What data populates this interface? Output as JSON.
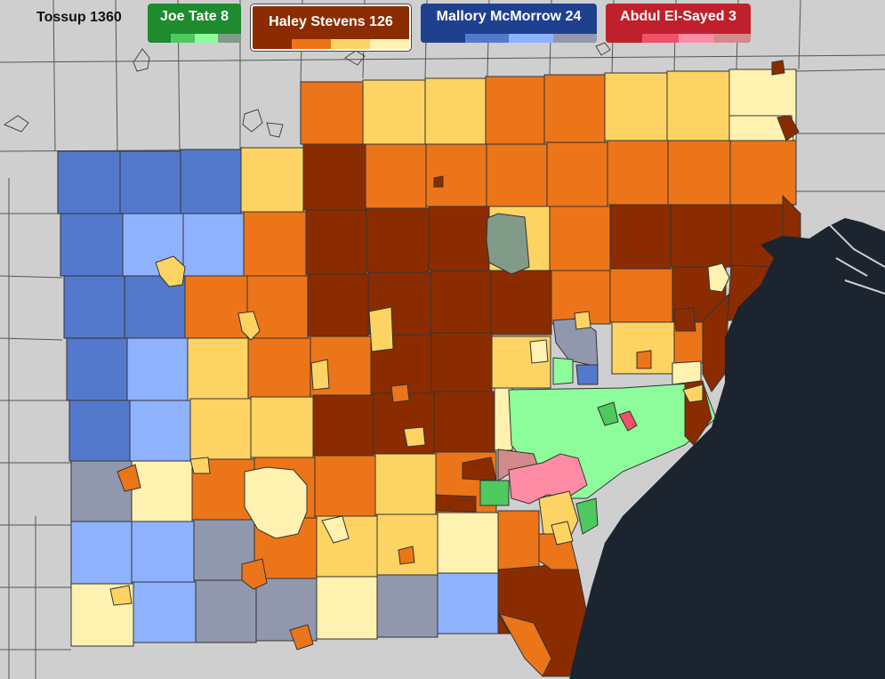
{
  "legend": {
    "tossup": "Tossup 1360",
    "candidates": [
      {
        "key": "tate",
        "label": "Joe Tate 8",
        "shades": [
          "#1e8b2f",
          "#4ec95e",
          "#8dfc9a",
          "#829a88"
        ]
      },
      {
        "key": "stevens",
        "label": "Haley Stevens 126",
        "shades": [
          "#8b2c00",
          "#ec7519",
          "#fdd463",
          "#fff2b0"
        ]
      },
      {
        "key": "mcm",
        "label": "Mallory McMorrow 24",
        "shades": [
          "#1f3f8f",
          "#5479cc",
          "#8fb2ff",
          "#9198ae"
        ]
      },
      {
        "key": "abdul",
        "label": "Abdul El-Sayed 3",
        "shades": [
          "#c0202c",
          "#f0506a",
          "#ff8ca4",
          "#d38a8a"
        ]
      }
    ]
  },
  "colors": {
    "background": "#cfcfcf",
    "water": "#1c2430",
    "boundary": "#333333"
  }
}
